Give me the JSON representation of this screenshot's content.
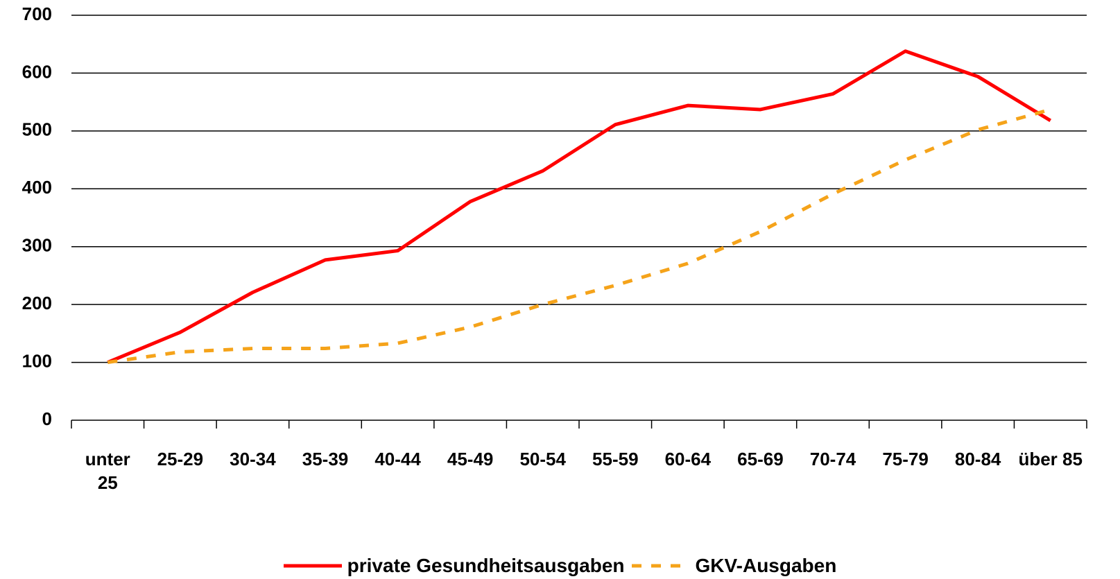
{
  "chart_data": {
    "type": "line",
    "categories": [
      "unter 25",
      "25-29",
      "30-34",
      "35-39",
      "40-44",
      "45-49",
      "50-54",
      "55-59",
      "60-64",
      "65-69",
      "70-74",
      "75-79",
      "80-84",
      "über 85"
    ],
    "series": [
      {
        "name": "private Gesundheitsausgaben",
        "color": "#ff0000",
        "style": "solid",
        "values": [
          100,
          152,
          221,
          277,
          293,
          378,
          431,
          511,
          544,
          537,
          564,
          638,
          594,
          518
        ]
      },
      {
        "name": "GKV-Ausgaben",
        "color": "#f5a31a",
        "style": "dashed",
        "values": [
          100,
          118,
          124,
          124,
          133,
          161,
          200,
          233,
          271,
          326,
          391,
          450,
          502,
          537
        ]
      }
    ],
    "ylim": [
      0,
      700
    ],
    "yticks": [
      0,
      100,
      200,
      300,
      400,
      500,
      600,
      700
    ],
    "grid": true,
    "legend": "bottom"
  }
}
